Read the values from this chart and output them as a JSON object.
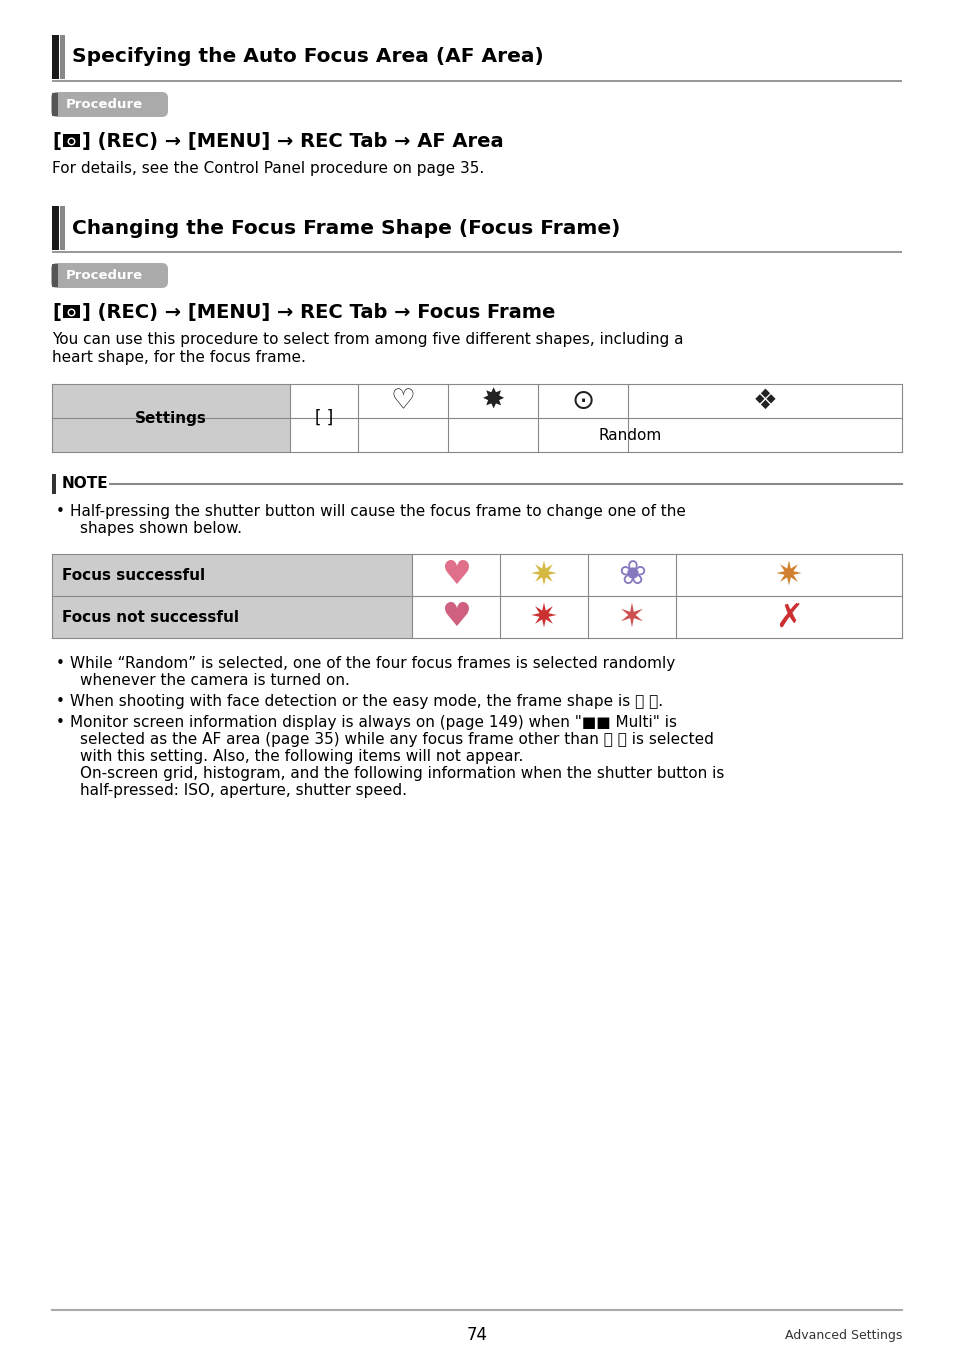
{
  "page_bg": "#ffffff",
  "title1": "Specifying the Auto Focus Area (AF Area)",
  "title2": "Changing the Focus Frame Shape (Focus Frame)",
  "procedure_label": "Procedure",
  "proc1_detail": "For details, see the Control Panel procedure on page 35.",
  "proc2_detail_line1": "You can use this procedure to select from among five different shapes, including a",
  "proc2_detail_line2": "heart shape, for the focus frame.",
  "settings_label": "Settings",
  "random_label": "Random",
  "note_label": "NOTE",
  "bullet1_line1": "Half-pressing the shutter button will cause the focus frame to change one of the",
  "bullet1_line2": "shapes shown below.",
  "focus_successful": "Focus successful",
  "focus_not_successful": "Focus not successful",
  "bullet2_line1": "While “Random” is selected, one of the four focus frames is selected randomly",
  "bullet2_line2": "whenever the camera is turned on.",
  "bullet3": "When shooting with face detection or the easy mode, the frame shape is 〈 〉.",
  "bullet4_line1": "Monitor screen information display is always on (page 149) when \"■■ Multi\" is",
  "bullet4_line2": "selected as the AF area (page 35) while any focus frame other than 〈 〉 is selected",
  "bullet4_line3": "with this setting. Also, the following items will not appear.",
  "bullet4_line4": "On-screen grid, histogram, and the following information when the shutter button is",
  "bullet4_line5": "half-pressed: ISO, aperture, shutter speed.",
  "footer_page": "74",
  "footer_right": "Advanced Settings"
}
